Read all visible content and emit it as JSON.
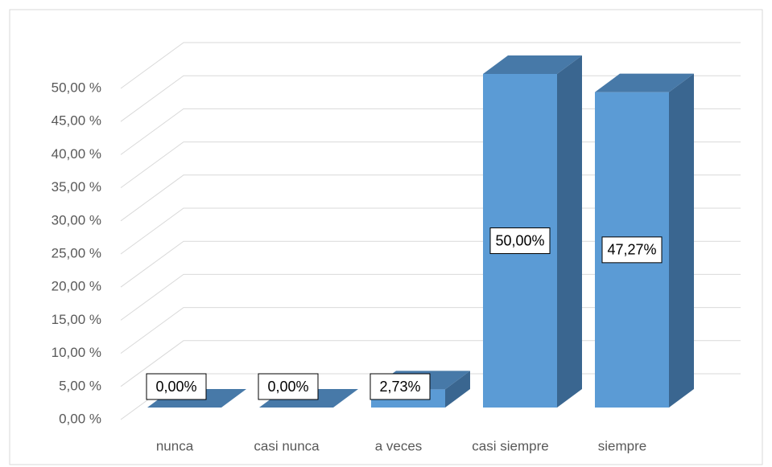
{
  "chart_data": {
    "type": "bar",
    "categories": [
      "nunca",
      "casi nunca",
      "a veces",
      "casi siempre",
      "siempre"
    ],
    "values": [
      0,
      0,
      2.73,
      50,
      47.27
    ],
    "value_labels": [
      "0,00%",
      "0,00%",
      "2,73%",
      "50,00%",
      "47,27%"
    ],
    "color": "#5b9bd5",
    "ylim": [
      0,
      50
    ],
    "yticks": [
      {
        "value": 0,
        "label": "0,00 %"
      },
      {
        "value": 5,
        "label": "5,00 %"
      },
      {
        "value": 10,
        "label": "10,00 %"
      },
      {
        "value": 15,
        "label": "15,00 %"
      },
      {
        "value": 20,
        "label": "20,00 %"
      },
      {
        "value": 25,
        "label": "25,00 %"
      },
      {
        "value": 30,
        "label": "30,00 %"
      },
      {
        "value": 35,
        "label": "35,00 %"
      },
      {
        "value": 40,
        "label": "40,00 %"
      },
      {
        "value": 45,
        "label": "45,00 %"
      },
      {
        "value": 50,
        "label": "50,00 %"
      }
    ],
    "grid": true
  }
}
